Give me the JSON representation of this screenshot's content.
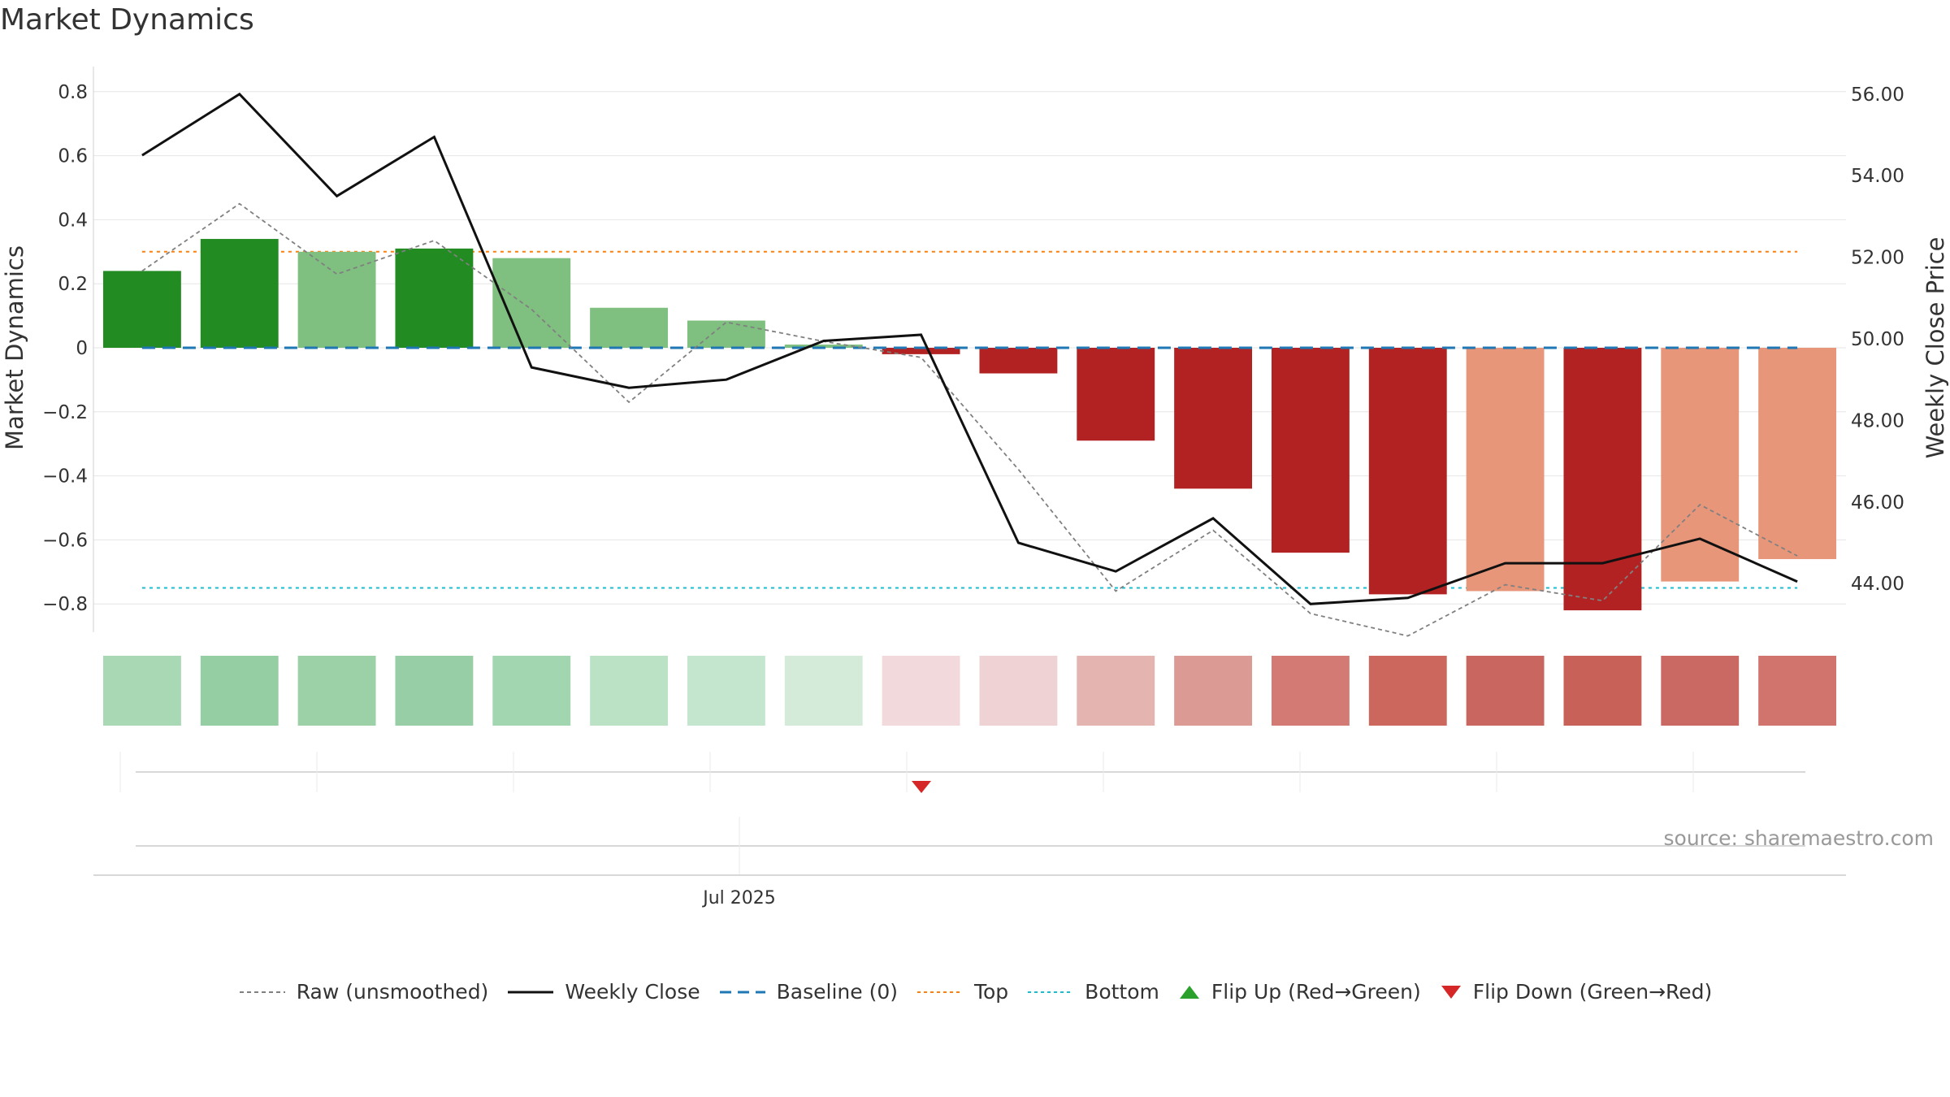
{
  "title": "Market Dynamics",
  "source": "source: sharemaestro.com",
  "legend": {
    "raw": "Raw (unsmoothed)",
    "close": "Weekly Close",
    "baseline": "Baseline (0)",
    "top": "Top",
    "bottom": "Bottom",
    "flip_up": "Flip Up (Red→Green)",
    "flip_down": "Flip Down (Green→Red)"
  },
  "chart_data": {
    "type": "bar",
    "title": "Market Dynamics",
    "ylabel": "Market Dynamics",
    "y2label": "Weekly Close Price",
    "ylim": [
      -0.9,
      0.88
    ],
    "y2lim": [
      42.8,
      56.6
    ],
    "yticks": [
      0.8,
      0.6,
      0.4,
      0.2,
      0,
      -0.2,
      -0.4,
      -0.6,
      -0.8
    ],
    "ytick_labels": [
      "0.8",
      "0.6",
      "0.4",
      "0.2",
      "0",
      "−0.2",
      "−0.4",
      "−0.6",
      "−0.8"
    ],
    "y2ticks": [
      56,
      54,
      52,
      50,
      48,
      46,
      44
    ],
    "y2tick_labels": [
      "56.00",
      "54.00",
      "52.00",
      "50.00",
      "48.00",
      "46.00",
      "44.00"
    ],
    "x_tick_label": "Jul 2025",
    "top_threshold": 0.3,
    "bottom_threshold": -0.75,
    "baseline": 0,
    "series": [
      {
        "name": "Market Dynamics",
        "values": [
          0.24,
          0.34,
          0.3,
          0.31,
          0.28,
          0.125,
          0.085,
          0.01,
          -0.02,
          -0.08,
          -0.29,
          -0.44,
          -0.64,
          -0.77,
          -0.76,
          -0.82,
          -0.73,
          -0.66
        ]
      },
      {
        "name": "Raw (unsmoothed)",
        "values": [
          0.24,
          0.45,
          0.23,
          0.335,
          0.12,
          -0.17,
          0.08,
          0.02,
          -0.03,
          -0.38,
          -0.76,
          -0.57,
          -0.83,
          -0.9,
          -0.74,
          -0.79,
          -0.49,
          -0.65
        ]
      },
      {
        "name": "Weekly Close",
        "values": [
          54.5,
          56.0,
          53.5,
          54.95,
          49.3,
          48.8,
          49.0,
          49.95,
          50.1,
          45.0,
          44.3,
          45.6,
          43.5,
          43.65,
          44.5,
          44.5,
          45.1,
          44.05
        ]
      }
    ],
    "bar_colors": [
      "#228B22",
      "#228B22",
      "#7FBF7F",
      "#228B22",
      "#7FBF7F",
      "#7FBF7F",
      "#7FBF7F",
      "#7FBF7F",
      "#B22222",
      "#B22222",
      "#B22222",
      "#B22222",
      "#B22222",
      "#B22222",
      "#E8967A",
      "#B22222",
      "#E8967A",
      "#E8967A"
    ],
    "heat_colors": [
      "#A8D8B4",
      "#96CEA4",
      "#9CD1A8",
      "#97CEA5",
      "#A2D6B0",
      "#BCE2C6",
      "#C5E6CE",
      "#D4EBDA",
      "#F2DADC",
      "#EFD2D4",
      "#E4B4B1",
      "#DC9A95",
      "#D27A73",
      "#CC675E",
      "#CA6660",
      "#C86157",
      "#CA6964",
      "#D1746E"
    ],
    "flip_down_index": 8,
    "colors": {
      "strong_green": "#228B22",
      "light_green": "#7FBF7F",
      "strong_red": "#B22222",
      "light_red": "#E8967A",
      "close_line": "#111111",
      "raw_line": "#808080",
      "baseline": "#1F77B4",
      "top": "#FF7F0E",
      "bottom": "#17BECF",
      "flip_up": "#2CA02C",
      "flip_down": "#D62728"
    },
    "grid": true,
    "legend_position": "bottom"
  }
}
